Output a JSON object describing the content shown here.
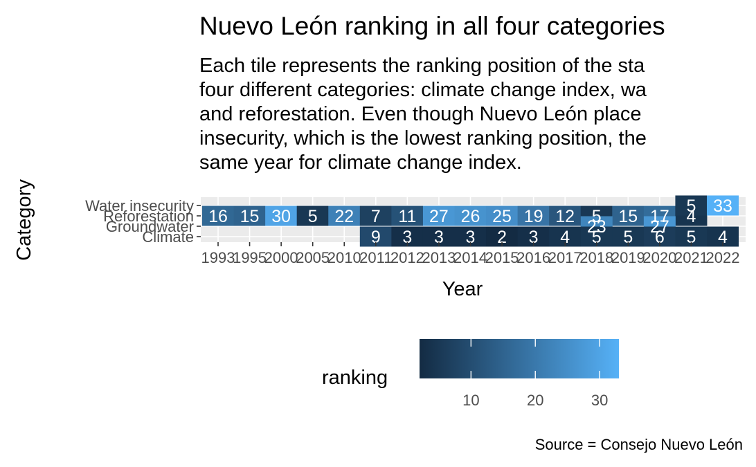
{
  "chart_data": {
    "type": "heatmap",
    "title": "Nuevo León ranking in all four categories",
    "subtitle_lines": [
      "Each tile represents the ranking position of the sta",
      "four different categories: climate change index, wa",
      "and reforestation. Even though Nuevo León place",
      "insecurity, which is the lowest ranking position, the",
      "same year for climate change index."
    ],
    "xlabel": "Year",
    "ylabel": "Category",
    "x": [
      "1993",
      "1995",
      "2000",
      "2005",
      "2010",
      "2011",
      "2012",
      "2013",
      "2014",
      "2015",
      "2016",
      "2017",
      "2018",
      "2019",
      "2020",
      "2021",
      "2022"
    ],
    "categories": [
      "Water insecurity",
      "Reforestation",
      "Groundwater",
      "Climate"
    ],
    "cells": [
      {
        "category": "Reforestation",
        "year": 1993,
        "value": 16
      },
      {
        "category": "Reforestation",
        "year": 1995,
        "value": 15
      },
      {
        "category": "Reforestation",
        "year": 2000,
        "value": 30
      },
      {
        "category": "Reforestation",
        "year": 2005,
        "value": 5
      },
      {
        "category": "Reforestation",
        "year": 2010,
        "value": 22
      },
      {
        "category": "Reforestation",
        "year": 2011,
        "value": 7
      },
      {
        "category": "Reforestation",
        "year": 2012,
        "value": 11
      },
      {
        "category": "Reforestation",
        "year": 2013,
        "value": 27
      },
      {
        "category": "Reforestation",
        "year": 2014,
        "value": 26
      },
      {
        "category": "Reforestation",
        "year": 2015,
        "value": 25
      },
      {
        "category": "Reforestation",
        "year": 2016,
        "value": 19
      },
      {
        "category": "Reforestation",
        "year": 2017,
        "value": 12
      },
      {
        "category": "Reforestation",
        "year": 2018,
        "value": 5
      },
      {
        "category": "Reforestation",
        "year": 2019,
        "value": 15
      },
      {
        "category": "Reforestation",
        "year": 2020,
        "value": 17
      },
      {
        "category": "Reforestation",
        "year": 2021,
        "value": 4
      },
      {
        "category": "Groundwater",
        "year": 2018,
        "value": 23
      },
      {
        "category": "Groundwater",
        "year": 2020,
        "value": 27
      },
      {
        "category": "Climate",
        "year": 2011,
        "value": 9
      },
      {
        "category": "Climate",
        "year": 2012,
        "value": 3
      },
      {
        "category": "Climate",
        "year": 2013,
        "value": 3
      },
      {
        "category": "Climate",
        "year": 2014,
        "value": 3
      },
      {
        "category": "Climate",
        "year": 2015,
        "value": 2
      },
      {
        "category": "Climate",
        "year": 2016,
        "value": 3
      },
      {
        "category": "Climate",
        "year": 2017,
        "value": 4
      },
      {
        "category": "Climate",
        "year": 2018,
        "value": 5
      },
      {
        "category": "Climate",
        "year": 2019,
        "value": 5
      },
      {
        "category": "Climate",
        "year": 2020,
        "value": 6
      },
      {
        "category": "Climate",
        "year": 2021,
        "value": 5
      },
      {
        "category": "Climate",
        "year": 2022,
        "value": 4
      },
      {
        "category": "Water insecurity",
        "year": 2021,
        "value": 5
      },
      {
        "category": "Water insecurity",
        "year": 2022,
        "value": 33
      }
    ],
    "legend": {
      "title": "ranking",
      "position": "bottom",
      "ticks": [
        10,
        20,
        30
      ],
      "range": [
        2,
        33
      ],
      "low_color": "#132B43",
      "high_color": "#56B1F7"
    },
    "caption": "Source = Consejo Nuevo León",
    "panel_background": "#ebebeb",
    "grid_color": "#ffffff",
    "grid": true
  }
}
